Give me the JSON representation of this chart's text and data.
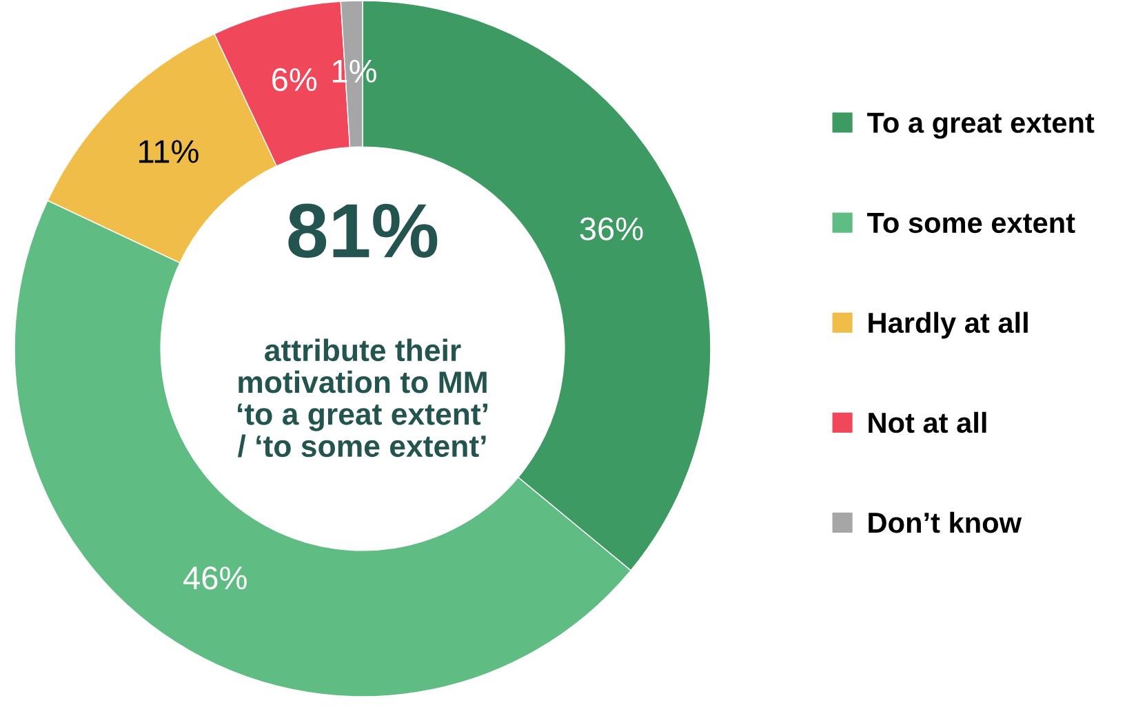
{
  "chart_data": {
    "type": "donut",
    "categories": [
      "To a great extent",
      "To some extent",
      "Hardly at all",
      "Not at all",
      "Don’t know"
    ],
    "values": [
      36,
      46,
      11,
      6,
      1
    ],
    "colors": [
      "#3d9a62",
      "#5fbd84",
      "#f0be48",
      "#f0475a",
      "#a6a6a6"
    ],
    "value_labels": [
      "36%",
      "46%",
      "11%",
      "6%",
      "1%"
    ],
    "legend": "right",
    "annotations": [
      "81%",
      "attribute their\nmotivation to MM\n‘to a great extent’\n/ ‘to some extent’"
    ]
  }
}
